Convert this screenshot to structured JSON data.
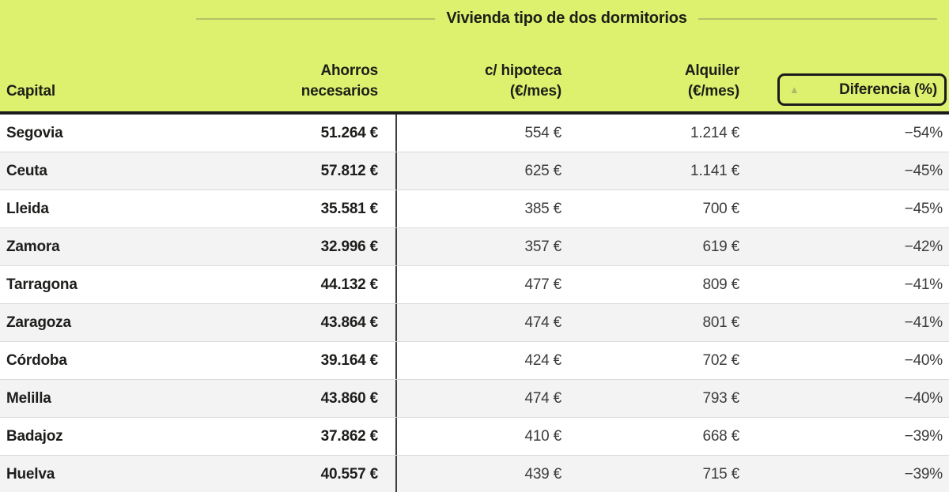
{
  "title": "Vivienda tipo de dos dormitorios",
  "colors": {
    "header_bg": "#def16f",
    "title_divider": "#b6c167",
    "text_dark": "#1d1d1b",
    "text_regular": "#3c3c3c",
    "row_alt_bg": "#f3f3f4",
    "heavy_border": "#1b1b1b"
  },
  "header": {
    "capital": "Capital",
    "ahorros_line1": "Ahorros",
    "ahorros_line2": "necesarios",
    "hipoteca_line1": "c/ hipoteca",
    "hipoteca_line2": "(€/mes)",
    "alquiler_line1": "Alquiler",
    "alquiler_line2": "(€/mes)",
    "diferencia": "Diferencia (%)",
    "sort_indicator": "▲"
  },
  "chart_data": {
    "type": "table",
    "title": "Vivienda tipo de dos dormitorios",
    "columns": [
      "Capital",
      "Ahorros necesarios",
      "c/ hipoteca (€/mes)",
      "Alquiler (€/mes)",
      "Diferencia (%)"
    ],
    "sort": {
      "column": "Diferencia (%)",
      "direction": "ascending"
    },
    "rows": [
      {
        "capital": "Segovia",
        "ahorros": "51.264 €",
        "hipoteca": "554 €",
        "alquiler": "1.214 €",
        "diferencia": "−54%"
      },
      {
        "capital": "Ceuta",
        "ahorros": "57.812 €",
        "hipoteca": "625 €",
        "alquiler": "1.141 €",
        "diferencia": "−45%"
      },
      {
        "capital": "Lleida",
        "ahorros": "35.581 €",
        "hipoteca": "385 €",
        "alquiler": "700 €",
        "diferencia": "−45%"
      },
      {
        "capital": "Zamora",
        "ahorros": "32.996 €",
        "hipoteca": "357 €",
        "alquiler": "619 €",
        "diferencia": "−42%"
      },
      {
        "capital": "Tarragona",
        "ahorros": "44.132 €",
        "hipoteca": "477 €",
        "alquiler": "809 €",
        "diferencia": "−41%"
      },
      {
        "capital": "Zaragoza",
        "ahorros": "43.864 €",
        "hipoteca": "474 €",
        "alquiler": "801 €",
        "diferencia": "−41%"
      },
      {
        "capital": "Córdoba",
        "ahorros": "39.164 €",
        "hipoteca": "424 €",
        "alquiler": "702 €",
        "diferencia": "−40%"
      },
      {
        "capital": "Melilla",
        "ahorros": "43.860 €",
        "hipoteca": "474 €",
        "alquiler": "793 €",
        "diferencia": "−40%"
      },
      {
        "capital": "Badajoz",
        "ahorros": "37.862 €",
        "hipoteca": "410 €",
        "alquiler": "668 €",
        "diferencia": "−39%"
      },
      {
        "capital": "Huelva",
        "ahorros": "40.557 €",
        "hipoteca": "439 €",
        "alquiler": "715 €",
        "diferencia": "−39%"
      }
    ]
  }
}
